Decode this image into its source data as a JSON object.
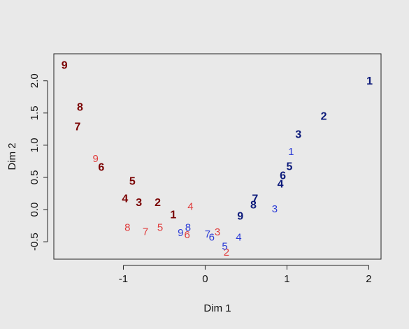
{
  "chart_data": {
    "type": "scatter",
    "title": "",
    "xlabel": "Dim 1",
    "ylabel": "Dim 2",
    "xlim": [
      -1.85,
      2.15
    ],
    "ylim": [
      -0.77,
      2.42
    ],
    "xticks": [
      -1,
      0,
      1,
      2
    ],
    "xtick_labels": [
      "-1",
      "0",
      "1",
      "2"
    ],
    "yticks": [
      -0.5,
      0.0,
      0.5,
      1.0,
      1.5,
      2.0
    ],
    "ytick_labels": [
      "-0.5",
      "0.0",
      "0.5",
      "1.0",
      "1.5",
      "2.0"
    ],
    "grid": false,
    "series": [
      {
        "color": "#7a0000",
        "style": "bold",
        "points": [
          {
            "label": "9",
            "x": -1.72,
            "y": 2.23
          },
          {
            "label": "8",
            "x": -1.53,
            "y": 1.58
          },
          {
            "label": "7",
            "x": -1.56,
            "y": 1.28
          },
          {
            "label": "6",
            "x": -1.27,
            "y": 0.65
          },
          {
            "label": "5",
            "x": -0.89,
            "y": 0.43
          },
          {
            "label": "4",
            "x": -0.98,
            "y": 0.16
          },
          {
            "label": "3",
            "x": -0.81,
            "y": 0.1
          },
          {
            "label": "2",
            "x": -0.58,
            "y": 0.1
          },
          {
            "label": "1",
            "x": -0.39,
            "y": -0.09
          }
        ]
      },
      {
        "color": "#e03c3c",
        "style": "light",
        "points": [
          {
            "label": "9",
            "x": -1.34,
            "y": 0.78
          },
          {
            "label": "8",
            "x": -0.95,
            "y": -0.29
          },
          {
            "label": "7",
            "x": -0.73,
            "y": -0.35
          },
          {
            "label": "5",
            "x": -0.55,
            "y": -0.29
          },
          {
            "label": "6",
            "x": -0.22,
            "y": -0.4
          },
          {
            "label": "4",
            "x": -0.18,
            "y": 0.04
          },
          {
            "label": "3",
            "x": 0.15,
            "y": -0.36
          },
          {
            "label": "2",
            "x": 0.26,
            "y": -0.67
          }
        ]
      },
      {
        "color": "#2b3bd6",
        "style": "light",
        "points": [
          {
            "label": "9",
            "x": -0.3,
            "y": -0.37
          },
          {
            "label": "8",
            "x": -0.21,
            "y": -0.29
          },
          {
            "label": "7",
            "x": 0.03,
            "y": -0.39
          },
          {
            "label": "6",
            "x": 0.08,
            "y": -0.44
          },
          {
            "label": "5",
            "x": 0.24,
            "y": -0.58
          },
          {
            "label": "4",
            "x": 0.41,
            "y": -0.44
          },
          {
            "label": "3",
            "x": 0.85,
            "y": 0.0
          },
          {
            "label": "1",
            "x": 1.05,
            "y": 0.89
          }
        ]
      },
      {
        "color": "#0c1a7a",
        "style": "bold",
        "points": [
          {
            "label": "9",
            "x": 0.43,
            "y": -0.11
          },
          {
            "label": "8",
            "x": 0.59,
            "y": 0.06
          },
          {
            "label": "7",
            "x": 0.61,
            "y": 0.16
          },
          {
            "label": "4",
            "x": 0.92,
            "y": 0.39
          },
          {
            "label": "6",
            "x": 0.95,
            "y": 0.52
          },
          {
            "label": "5",
            "x": 1.03,
            "y": 0.66
          },
          {
            "label": "3",
            "x": 1.14,
            "y": 1.16
          },
          {
            "label": "2",
            "x": 1.45,
            "y": 1.44
          },
          {
            "label": "1",
            "x": 2.01,
            "y": 1.99
          }
        ]
      }
    ]
  }
}
